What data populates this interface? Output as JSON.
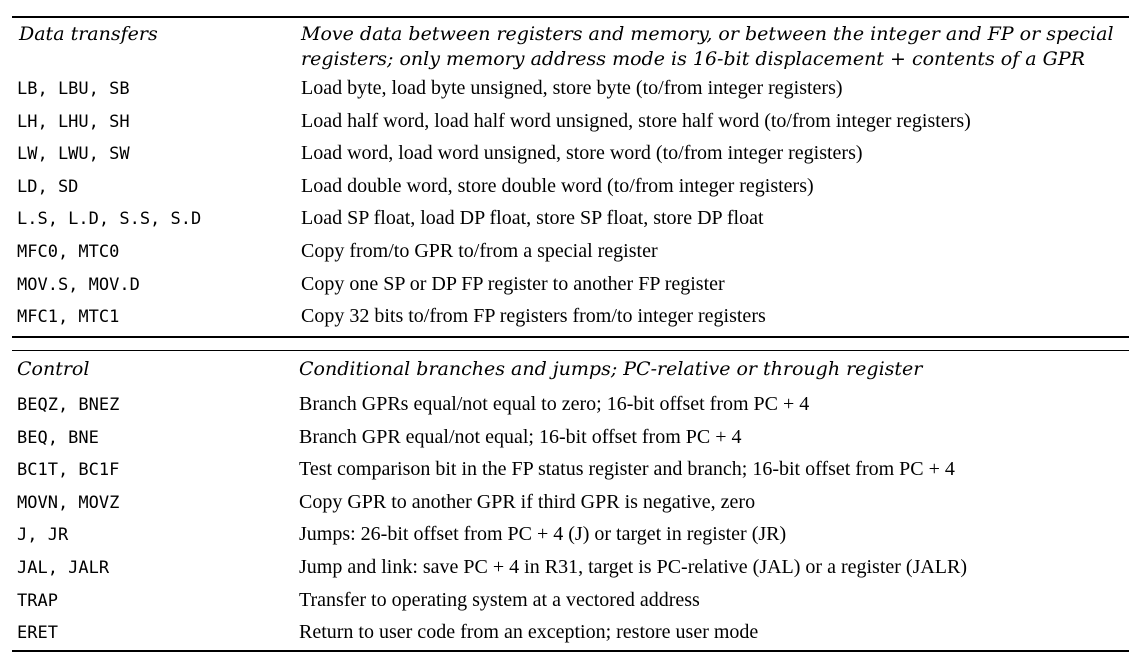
{
  "sections": [
    {
      "category": "Data transfers",
      "description_line1": "Move data between registers and memory, or between the integer and FP or special",
      "description_line2": "registers; only memory address mode is 16-bit displacement + contents of a GPR",
      "rows": [
        {
          "op": "LB, LBU, SB",
          "text": "Load byte, load byte unsigned, store byte (to/from integer registers)"
        },
        {
          "op": "LH, LHU, SH",
          "text": "Load half word, load half word unsigned, store half word (to/from integer registers)"
        },
        {
          "op": "LW, LWU, SW",
          "text": "Load word, load word unsigned, store word (to/from integer registers)"
        },
        {
          "op": "LD, SD",
          "text": "Load double word, store double word (to/from integer registers)"
        },
        {
          "op": "L.S, L.D, S.S, S.D",
          "text": "Load SP float, load DP float, store SP float, store DP float"
        },
        {
          "op": "MFC0, MTC0",
          "text": "Copy from/to GPR to/from a special register"
        },
        {
          "op": "MOV.S, MOV.D",
          "text": "Copy one SP or DP FP register to another FP register"
        },
        {
          "op": "MFC1, MTC1",
          "text": "Copy 32 bits to/from FP registers from/to integer registers"
        }
      ]
    },
    {
      "category": "Control",
      "description_line1": "Conditional branches and jumps; PC-relative or through register",
      "rows": [
        {
          "op": "BEQZ, BNEZ",
          "text": "Branch GPRs equal/not equal to zero; 16-bit offset from PC + 4"
        },
        {
          "op": "BEQ, BNE",
          "text": "Branch GPR equal/not equal; 16-bit offset from PC + 4"
        },
        {
          "op": "BC1T, BC1F",
          "text": "Test comparison bit in the FP status register and branch; 16-bit offset from PC + 4"
        },
        {
          "op": "MOVN, MOVZ",
          "text": "Copy GPR to another GPR if third GPR is negative, zero"
        },
        {
          "op": "J, JR",
          "text": "Jumps: 26-bit offset from PC + 4 (J) or target in register (JR)"
        },
        {
          "op": "JAL, JALR",
          "text": "Jump and link: save PC + 4 in R31, target is PC-relative (JAL) or a register (JALR)"
        },
        {
          "op": "TRAP",
          "text": "Transfer to operating system at a vectored address"
        },
        {
          "op": "ERET",
          "text": "Return to user code from an exception; restore user mode"
        }
      ]
    }
  ]
}
